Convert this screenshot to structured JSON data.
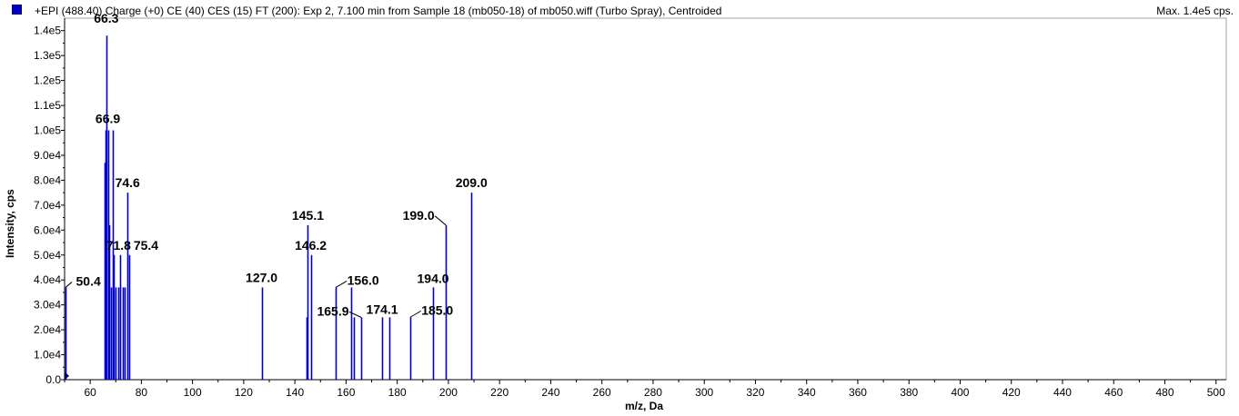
{
  "header": {
    "title": "+EPI (488.40) Charge (+0) CE (40) CES (15) FT (200): Exp 2, 7.100 min from Sample 18 (mb050-18) of mb050.wiff (Turbo Spray), Centroided",
    "max_label": "Max. 1.4e5 cps.",
    "series_color": "#0000c8"
  },
  "chart_data": {
    "type": "bar",
    "title": "+EPI (488.40) Charge (+0) CE (40) CES (15) FT (200): Exp 2, 7.100 min from Sample 18 (mb050-18) of mb050.wiff (Turbo Spray), Centroided",
    "xlabel": "m/z, Da",
    "ylabel": "Intensity, cps",
    "xlim": [
      50,
      504
    ],
    "ylim": [
      0,
      145000
    ],
    "xticks": [
      60,
      80,
      100,
      120,
      140,
      160,
      180,
      200,
      220,
      240,
      260,
      280,
      300,
      320,
      340,
      360,
      380,
      400,
      420,
      440,
      460,
      480,
      500
    ],
    "yticks": [
      0,
      10000,
      20000,
      30000,
      40000,
      50000,
      60000,
      70000,
      80000,
      90000,
      100000,
      110000,
      120000,
      130000,
      140000
    ],
    "ytick_labels": [
      "0.0",
      "1.0e4",
      "2.0e4",
      "3.0e4",
      "4.0e4",
      "5.0e4",
      "6.0e4",
      "7.0e4",
      "8.0e4",
      "9.0e4",
      "1.0e5",
      "1.1e5",
      "1.2e5",
      "1.3e5",
      "1.4e5"
    ],
    "color": "#0000c8",
    "peaks": [
      {
        "mz": 50.4,
        "intensity": 37000
      },
      {
        "mz": 65.5,
        "intensity": 87000
      },
      {
        "mz": 66.0,
        "intensity": 100000
      },
      {
        "mz": 66.3,
        "intensity": 138000
      },
      {
        "mz": 66.9,
        "intensity": 100000
      },
      {
        "mz": 67.3,
        "intensity": 62000
      },
      {
        "mz": 68.0,
        "intensity": 37000
      },
      {
        "mz": 68.7,
        "intensity": 100000
      },
      {
        "mz": 69.3,
        "intensity": 50000
      },
      {
        "mz": 70.0,
        "intensity": 37000
      },
      {
        "mz": 70.8,
        "intensity": 37000
      },
      {
        "mz": 71.8,
        "intensity": 50000
      },
      {
        "mz": 72.6,
        "intensity": 37000
      },
      {
        "mz": 73.3,
        "intensity": 37000
      },
      {
        "mz": 74.6,
        "intensity": 75000
      },
      {
        "mz": 75.4,
        "intensity": 50000
      },
      {
        "mz": 127.0,
        "intensity": 37000
      },
      {
        "mz": 144.5,
        "intensity": 25000
      },
      {
        "mz": 145.1,
        "intensity": 62000
      },
      {
        "mz": 146.2,
        "intensity": 50000
      },
      {
        "mz": 156.0,
        "intensity": 37000
      },
      {
        "mz": 162.0,
        "intensity": 37000
      },
      {
        "mz": 163.0,
        "intensity": 25000
      },
      {
        "mz": 165.9,
        "intensity": 25000
      },
      {
        "mz": 174.1,
        "intensity": 25000
      },
      {
        "mz": 177.0,
        "intensity": 25000
      },
      {
        "mz": 185.0,
        "intensity": 25000
      },
      {
        "mz": 194.0,
        "intensity": 37000
      },
      {
        "mz": 199.0,
        "intensity": 62000
      },
      {
        "mz": 209.0,
        "intensity": 75000
      }
    ],
    "annotations": [
      {
        "text": "66.3",
        "mz": 66.3,
        "intensity": 138000
      },
      {
        "text": "66.9",
        "mz": 66.9,
        "intensity": 100000
      },
      {
        "text": "74.6",
        "mz": 74.6,
        "intensity": 75000
      },
      {
        "text": "71.8",
        "mz": 71.8,
        "intensity": 50000
      },
      {
        "text": "75.4",
        "mz": 75.4,
        "intensity": 50000
      },
      {
        "text": "50.4",
        "mz": 50.4,
        "intensity": 37000
      },
      {
        "text": "127.0",
        "mz": 127.0,
        "intensity": 37000
      },
      {
        "text": "145.1",
        "mz": 145.1,
        "intensity": 62000
      },
      {
        "text": "146.2",
        "mz": 146.2,
        "intensity": 50000
      },
      {
        "text": "156.0",
        "mz": 156.0,
        "intensity": 37000
      },
      {
        "text": "165.9",
        "mz": 165.9,
        "intensity": 25000
      },
      {
        "text": "174.1",
        "mz": 174.1,
        "intensity": 25000
      },
      {
        "text": "185.0",
        "mz": 185.0,
        "intensity": 25000
      },
      {
        "text": "194.0",
        "mz": 194.0,
        "intensity": 37000
      },
      {
        "text": "199.0",
        "mz": 199.0,
        "intensity": 62000
      },
      {
        "text": "209.0",
        "mz": 209.0,
        "intensity": 75000
      }
    ]
  }
}
